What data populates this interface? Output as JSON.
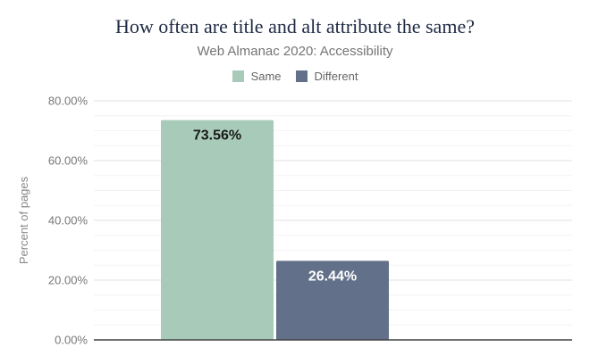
{
  "chart_data": {
    "type": "bar",
    "title": "How often are title and alt attribute the same?",
    "subtitle": "Web Almanac 2020: Accessibility",
    "xlabel": "",
    "ylabel": "Percent of pages",
    "ylim": [
      0,
      80
    ],
    "yticks": [
      "0.00%",
      "20.00%",
      "40.00%",
      "60.00%",
      "80.00%"
    ],
    "legend_position": "top",
    "grid": true,
    "series": [
      {
        "name": "Same",
        "value": 73.56,
        "label": "73.56%",
        "color": "#a8cbb9"
      },
      {
        "name": "Different",
        "value": 26.44,
        "label": "26.44%",
        "color": "#627089"
      }
    ]
  }
}
